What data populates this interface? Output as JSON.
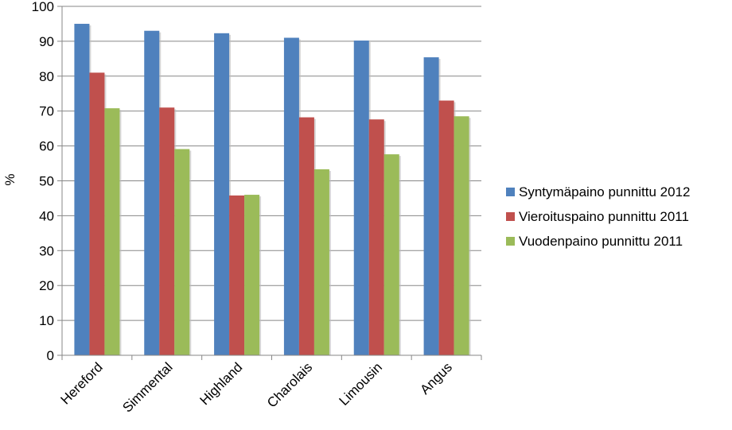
{
  "chart_data": {
    "type": "bar",
    "title": "",
    "xlabel": "",
    "ylabel": "%",
    "ylim": [
      0,
      100
    ],
    "yticks": [
      0,
      10,
      20,
      30,
      40,
      50,
      60,
      70,
      80,
      90,
      100
    ],
    "grid": true,
    "legend_position": "right",
    "categories": [
      "Hereford",
      "Simmental",
      "Highland",
      "Charolais",
      "Limousin",
      "Angus"
    ],
    "series": [
      {
        "name": "Syntymäpaino punnittu 2012",
        "color": "#4F81BD",
        "values": [
          95,
          93,
          92.3,
          91,
          90.2,
          85.4
        ]
      },
      {
        "name": "Vieroituspaino punnittu 2011",
        "color": "#C0504D",
        "values": [
          81,
          71,
          45.8,
          68.2,
          67.6,
          73
        ]
      },
      {
        "name": "Vuodenpaino punnittu 2011",
        "color": "#9BBB59",
        "values": [
          70.8,
          59.1,
          46,
          53.3,
          57.6,
          68.5
        ]
      }
    ]
  }
}
